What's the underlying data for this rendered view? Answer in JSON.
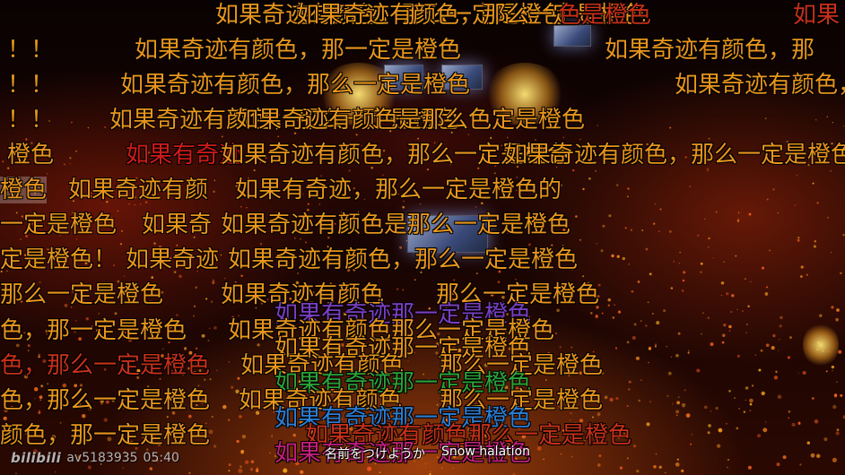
{
  "watermark": {
    "logo": "bilibili",
    "video_id": "av5183935",
    "time": "05:40"
  },
  "subtitle": {
    "lyric_jp": "名前をつけようか",
    "song": "Snow halation"
  },
  "danmaku": [
    {
      "text": "如果奇迹有颜色，那么一定是橙色",
      "color": "#e8951c"
    },
    {
      "text": "如果奇迹有颜色，那么一定是橙色",
      "color": "#e8951c"
    },
    {
      "text": "色是橙色",
      "color": "#c83018"
    },
    {
      "text": "如果",
      "color": "#c83018"
    },
    {
      "text": "！！",
      "color": "#e8951c"
    },
    {
      "text": "如果奇迹有颜色，那一定是橙色",
      "color": "#e8951c"
    },
    {
      "text": "如果奇迹有颜色，那",
      "color": "#e8951c"
    },
    {
      "text": "！！",
      "color": "#e8951c"
    },
    {
      "text": "如果奇迹有颜色，那么一定是橙色",
      "color": "#e8951c"
    },
    {
      "text": "如果奇迹有颜色，",
      "color": "#e8951c"
    },
    {
      "text": "！！",
      "color": "#e8951c"
    },
    {
      "text": "如果奇迹有颜色，那么一定是橙色",
      "color": "#e8951c"
    },
    {
      "text": "如果奇迹有颜色是那么色定是橙色",
      "color": "#e8951c"
    },
    {
      "text": "橙色",
      "color": "#e8951c"
    },
    {
      "text": "如果有奇迹",
      "color": "#d21a1a"
    },
    {
      "text": "如果奇迹有颜色，那么一定是橙色",
      "color": "#e8951c"
    },
    {
      "text": "如果奇迹有颜色，那么一定是橙色",
      "color": "#e8951c"
    },
    {
      "text": "橙色",
      "color": "#e8951c"
    },
    {
      "text": "如果奇迹有颜",
      "color": "#e8951c"
    },
    {
      "text": "如果有奇迹，那么一定是橙色的",
      "color": "#e8951c"
    },
    {
      "text": "一定是橙色",
      "color": "#e8951c"
    },
    {
      "text": "如果奇",
      "color": "#e8951c"
    },
    {
      "text": "如果奇迹有颜色是那么一定是橙色",
      "color": "#e8951c"
    },
    {
      "text": "定是橙色！",
      "color": "#e8951c"
    },
    {
      "text": "如果奇迹",
      "color": "#e8951c"
    },
    {
      "text": "如果奇迹有颜色，那么一定是橙色",
      "color": "#e8951c"
    },
    {
      "text": "那么一定是橙色",
      "color": "#e8951c"
    },
    {
      "text": "如果奇迹有颜色",
      "color": "#e8951c"
    },
    {
      "text": "那么一定是橙色",
      "color": "#e8951c"
    },
    {
      "text": "如果有奇迹那一定是橙色",
      "color": "#7b3fc4"
    },
    {
      "text": "色，那一定是橙色",
      "color": "#e8951c"
    },
    {
      "text": "如果奇迹有颜色那么一定是橙色",
      "color": "#e8951c"
    },
    {
      "text": "如果有奇迹那一定是橙色",
      "color": "#e8951c"
    },
    {
      "text": "色，那么一定是橙色",
      "color": "#c83018"
    },
    {
      "text": "如果奇迹有颜色",
      "color": "#e8951c"
    },
    {
      "text": "那么一定是橙色",
      "color": "#e8951c"
    },
    {
      "text": "如果有奇迹那一定是橙色",
      "color": "#2aa43a"
    },
    {
      "text": "色，那么一定是橙色",
      "color": "#e8951c"
    },
    {
      "text": "如果奇迹有颜色",
      "color": "#e8951c"
    },
    {
      "text": "那么一定是橙色",
      "color": "#e8951c"
    },
    {
      "text": "如果有奇迹那一定是橙色",
      "color": "#2b7fd6"
    },
    {
      "text": "颜色，那一定是橙色",
      "color": "#e8951c"
    },
    {
      "text": "如果奇迹有颜色那么一定是橙色",
      "color": "#c83018"
    },
    {
      "text": "如果有奇迹那一定是橙色",
      "color": "#c2207c"
    }
  ]
}
